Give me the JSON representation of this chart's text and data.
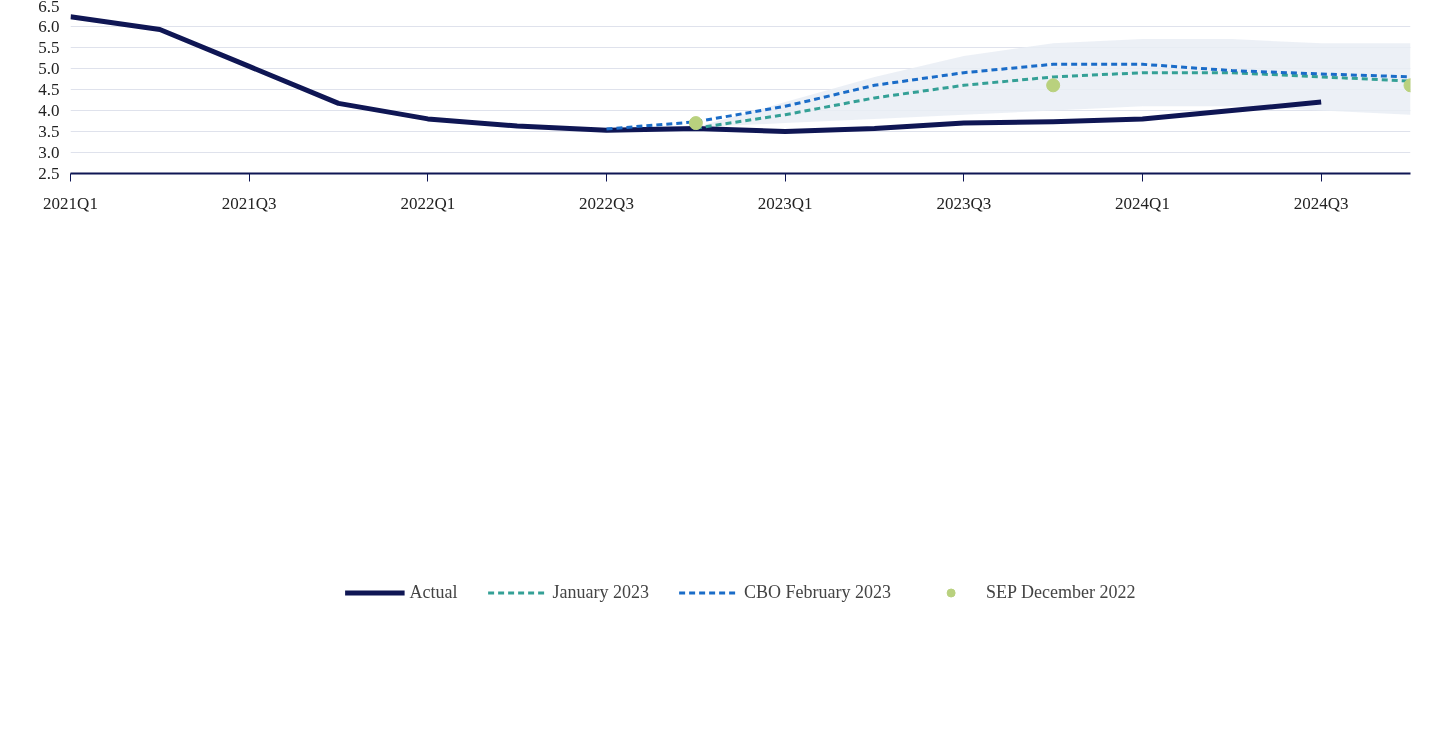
{
  "chart_data": {
    "type": "line",
    "categories": [
      "2021Q1",
      null,
      "2021Q3",
      null,
      "2022Q1",
      null,
      "2022Q3",
      null,
      "2023Q1",
      null,
      "2023Q3",
      null,
      "2024Q1",
      null,
      "2024Q3",
      null
    ],
    "ylim": [
      2.5,
      6.5
    ],
    "yticks": [
      2.5,
      {
        "value": 3,
        "label": "3.0"
      },
      3.5,
      {
        "value": 4,
        "label": "4.0"
      },
      4.5,
      {
        "value": 5,
        "label": "5.0"
      },
      5.5,
      {
        "value": 6,
        "label": "6.0"
      },
      6.5
    ],
    "grid": "y",
    "legend": "bottom",
    "series": [
      {
        "name": "Actual",
        "color": "#0f1654",
        "line_style": "solid",
        "values": [
          6.23,
          5.93,
          5.05,
          4.17,
          3.8,
          3.63,
          3.53,
          3.57,
          3.5,
          3.57,
          3.7,
          3.73,
          3.8,
          4.0,
          4.2,
          null
        ]
      },
      {
        "name": "January 2023",
        "color": "#34a096",
        "line_style": "dashed",
        "values": [
          null,
          null,
          null,
          null,
          null,
          null,
          null,
          3.58,
          3.9,
          4.3,
          4.6,
          4.8,
          4.9,
          4.9,
          4.8,
          4.7
        ],
        "lower": [
          null,
          null,
          null,
          null,
          null,
          null,
          null,
          3.6,
          3.7,
          3.8,
          3.9,
          4.0,
          4.1,
          4.1,
          4.0,
          3.9
        ],
        "upper": [
          null,
          null,
          null,
          null,
          null,
          null,
          null,
          3.6,
          4.2,
          4.8,
          5.3,
          5.6,
          5.7,
          5.7,
          5.6,
          5.6
        ]
      },
      {
        "name": "CBO February 2023",
        "color": "#1a6cc8",
        "line_style": "dashed",
        "values": [
          null,
          null,
          null,
          null,
          null,
          null,
          3.56,
          3.73,
          4.1,
          4.6,
          4.9,
          5.1,
          5.1,
          4.95,
          4.87,
          4.8
        ]
      },
      {
        "name": "SEP December 2022",
        "color": "#b9d17e",
        "type": "scatter",
        "marker": "circle",
        "values": [
          null,
          null,
          null,
          null,
          null,
          null,
          null,
          3.7,
          null,
          null,
          null,
          4.6,
          null,
          null,
          null,
          4.6
        ]
      }
    ]
  }
}
